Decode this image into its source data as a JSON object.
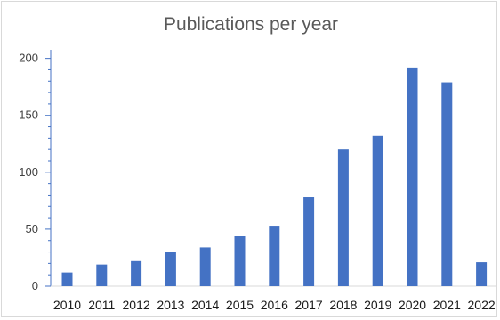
{
  "chart_data": {
    "type": "bar",
    "title": "Publications per year",
    "xlabel": "",
    "ylabel": "",
    "categories": [
      "2010",
      "2011",
      "2012",
      "2013",
      "2014",
      "2015",
      "2016",
      "2017",
      "2018",
      "2019",
      "2020",
      "2021",
      "2022"
    ],
    "values": [
      12,
      19,
      22,
      30,
      34,
      44,
      53,
      78,
      120,
      132,
      192,
      179,
      21
    ],
    "ylim": [
      0,
      220
    ],
    "yticks": [
      0,
      50,
      100,
      150,
      200
    ],
    "grid": false,
    "legend": "none",
    "bar_color": "#4472c4",
    "axis_color": "#4472c4"
  }
}
